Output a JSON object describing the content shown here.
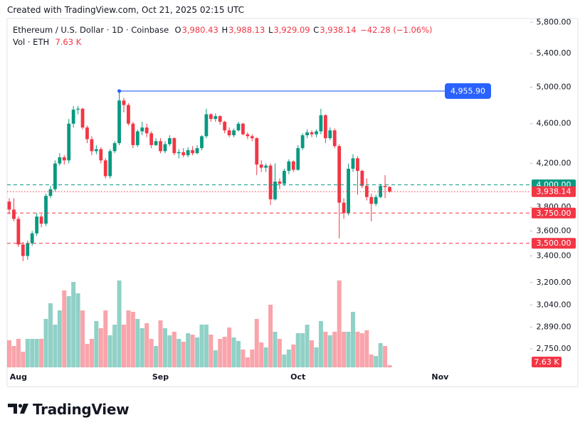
{
  "created": "Created with TradingView.com, Oct 21, 2025 02:15 UTC",
  "brand": "TradingView",
  "chart_data": {
    "type": "candlestick",
    "log_scale": true,
    "grid": false,
    "legend": {
      "title": "Ethereum / U.S. Dollar · 1D · Coinbase",
      "ohlc": [
        {
          "key": "O",
          "label": "3,980.43"
        },
        {
          "key": "H",
          "label": "3,988.13"
        },
        {
          "key": "L",
          "label": "3,929.09"
        },
        {
          "key": "C",
          "label": "3,938.14"
        }
      ],
      "change": "−42.28 (−1.06%)",
      "volume_title": "Vol · ETH"
    },
    "up_color": "#089981",
    "down_color": "#f23645",
    "categories": [
      null,
      null,
      "Aug",
      null,
      null,
      null,
      null,
      null,
      null,
      null,
      null,
      null,
      null,
      null,
      null,
      null,
      null,
      null,
      null,
      null,
      null,
      null,
      null,
      null,
      null,
      null,
      null,
      null,
      null,
      null,
      null,
      null,
      null,
      "Sep",
      null,
      null,
      null,
      null,
      null,
      null,
      null,
      null,
      null,
      null,
      null,
      null,
      null,
      null,
      null,
      null,
      null,
      null,
      null,
      null,
      null,
      null,
      null,
      null,
      null,
      null,
      null,
      null,
      null,
      "Oct",
      null,
      null,
      null,
      null,
      null,
      null,
      null,
      null,
      null,
      null,
      null,
      null,
      null,
      null,
      null,
      null,
      null,
      null,
      null,
      null,
      null,
      null,
      null,
      null,
      null,
      null,
      null,
      null,
      null,
      null,
      "Nov"
    ],
    "open": [
      3850,
      3780,
      3700,
      3490,
      3400,
      3500,
      3580,
      3720,
      3660,
      3900,
      3960,
      4200,
      4260,
      4230,
      4600,
      4750,
      4760,
      4560,
      4440,
      4320,
      4340,
      4230,
      4080,
      4320,
      4400,
      4850,
      4800,
      4600,
      4380,
      4520,
      4560,
      4500,
      4380,
      4420,
      4320,
      4390,
      4450,
      4300,
      4310,
      4280,
      4330,
      4300,
      4350,
      4470,
      4700,
      4650,
      4680,
      4620,
      4530,
      4480,
      4530,
      4600,
      4490,
      4470,
      4450,
      4190,
      4160,
      4180,
      3870,
      4030,
      4010,
      4130,
      4220,
      4140,
      4350,
      4480,
      4510,
      4490,
      4520,
      4690,
      4450,
      4530,
      4370,
      3840,
      3750,
      4150,
      4250,
      4130,
      3990,
      3890,
      3830,
      3890,
      3990,
      3980.43,
      null,
      null,
      null,
      null,
      null,
      null,
      null,
      null,
      null,
      null,
      null
    ],
    "high": [
      3880,
      3880,
      3720,
      3510,
      3520,
      3600,
      3750,
      3740,
      3920,
      3990,
      4230,
      4300,
      4280,
      4650,
      4790,
      4790,
      4770,
      4580,
      4470,
      4380,
      4360,
      4250,
      4340,
      4420,
      4955.9,
      4880,
      4820,
      4620,
      4540,
      4620,
      4600,
      4520,
      4450,
      4450,
      4420,
      4480,
      4460,
      4340,
      4350,
      4360,
      4370,
      4380,
      4480,
      4760,
      4710,
      4710,
      4690,
      4630,
      4560,
      4550,
      4620,
      4610,
      4510,
      4490,
      4460,
      4230,
      4200,
      4200,
      4200,
      4060,
      4150,
      4240,
      4230,
      4380,
      4500,
      4540,
      4530,
      4540,
      4760,
      4700,
      4560,
      4550,
      4390,
      3880,
      4200,
      4290,
      4270,
      4140,
      4060,
      3920,
      3910,
      4010,
      4090,
      3988.13,
      null,
      null,
      null,
      null,
      null,
      null,
      null,
      null,
      null,
      null,
      null
    ],
    "low": [
      3740,
      3680,
      3470,
      3360,
      3370,
      3480,
      3560,
      3630,
      3640,
      3880,
      3940,
      4180,
      4190,
      4200,
      4560,
      4700,
      4540,
      4400,
      4280,
      4290,
      4200,
      4060,
      4060,
      4300,
      4380,
      4720,
      4580,
      4350,
      4360,
      4480,
      4460,
      4350,
      4370,
      4300,
      4300,
      4370,
      4280,
      4250,
      4260,
      4260,
      4280,
      4290,
      4330,
      4450,
      4620,
      4620,
      4590,
      4500,
      4460,
      4460,
      4520,
      4480,
      4440,
      4420,
      4090,
      4120,
      4120,
      3820,
      3860,
      3960,
      3990,
      4100,
      4120,
      4130,
      4330,
      4450,
      4460,
      4460,
      4490,
      4400,
      4430,
      4350,
      3540,
      3700,
      3730,
      4120,
      3910,
      3970,
      3860,
      3680,
      3810,
      3880,
      3880,
      3929.09,
      null,
      null,
      null,
      null,
      null,
      null,
      null,
      null,
      null,
      null,
      null
    ],
    "close": [
      3780,
      3700,
      3490,
      3400,
      3500,
      3580,
      3720,
      3660,
      3900,
      3960,
      4200,
      4260,
      4230,
      4600,
      4750,
      4760,
      4560,
      4440,
      4320,
      4340,
      4230,
      4080,
      4320,
      4400,
      4850,
      4800,
      4600,
      4380,
      4520,
      4560,
      4500,
      4380,
      4420,
      4320,
      4390,
      4450,
      4300,
      4310,
      4280,
      4330,
      4300,
      4350,
      4470,
      4700,
      4650,
      4680,
      4620,
      4530,
      4480,
      4530,
      4600,
      4490,
      4470,
      4450,
      4190,
      4160,
      4180,
      3870,
      4030,
      4010,
      4130,
      4220,
      4140,
      4350,
      4480,
      4510,
      4490,
      4520,
      4690,
      4450,
      4530,
      4370,
      3840,
      3750,
      4150,
      4250,
      4130,
      3990,
      3890,
      3830,
      3890,
      3990,
      3980.43,
      3938.14,
      null,
      null,
      null,
      null,
      null,
      null,
      null,
      null,
      null,
      null,
      null
    ],
    "volume": {
      "values": [
        95000,
        75000,
        100000,
        55000,
        100000,
        100000,
        100000,
        100000,
        170000,
        225000,
        150000,
        200000,
        270000,
        250000,
        300000,
        260000,
        200000,
        82500,
        100000,
        162500,
        137500,
        200000,
        112500,
        150000,
        305000,
        150000,
        200000,
        195000,
        170000,
        137500,
        155000,
        100000,
        75000,
        165000,
        137500,
        112500,
        125000,
        100000,
        90000,
        120000,
        115000,
        105000,
        150000,
        150000,
        115000,
        60000,
        100000,
        107500,
        140000,
        105000,
        92500,
        62500,
        35000,
        62500,
        170000,
        87500,
        70000,
        220000,
        125000,
        100000,
        45000,
        62500,
        80000,
        120000,
        120000,
        150000,
        95000,
        70000,
        162500,
        125000,
        112500,
        125000,
        305000,
        125000,
        125000,
        195000,
        125000,
        120000,
        130000,
        45000,
        40000,
        85000,
        75000,
        7630,
        null,
        null,
        null,
        null,
        null,
        null,
        null,
        null,
        null,
        null,
        null
      ],
      "value_labels": [
        null,
        null,
        null,
        null,
        null,
        null,
        null,
        null,
        null,
        null,
        null,
        null,
        null,
        null,
        null,
        null,
        null,
        null,
        null,
        null,
        null,
        null,
        null,
        null,
        null,
        null,
        null,
        null,
        null,
        null,
        null,
        null,
        null,
        null,
        null,
        null,
        null,
        null,
        null,
        null,
        null,
        null,
        null,
        null,
        null,
        null,
        null,
        null,
        null,
        null,
        null,
        null,
        null,
        null,
        null,
        null,
        null,
        null,
        null,
        null,
        null,
        null,
        null,
        null,
        null,
        null,
        null,
        null,
        null,
        null,
        null,
        null,
        null,
        null,
        null,
        null,
        null,
        null,
        null,
        null,
        null,
        null,
        null,
        "7.63 K",
        null,
        null,
        null,
        null,
        null,
        null,
        null,
        null,
        null,
        null,
        null
      ]
    },
    "ylim": [
      2640,
      5850
    ],
    "yticks": [
      {
        "value": 5800,
        "label": "5,800.00"
      },
      {
        "value": 5400,
        "label": "5,400.00"
      },
      {
        "value": 5000,
        "label": "5,000.00"
      },
      {
        "value": 4600,
        "label": "4,600.00"
      },
      {
        "value": 4200,
        "label": "4,200.00"
      },
      {
        "value": 3800,
        "label": "3,800.00"
      },
      {
        "value": 3600,
        "label": "3,600.00"
      },
      {
        "value": 3400,
        "label": "3,400.00"
      },
      {
        "value": 3200,
        "label": "3,200.00"
      },
      {
        "value": 3040,
        "label": "3,040.00"
      },
      {
        "value": 2890,
        "label": "2,890.00"
      },
      {
        "value": 2750,
        "label": "2,750.00"
      }
    ],
    "levels": [
      {
        "value": 4000,
        "label": "4,000.00",
        "color": "#089981",
        "style": "dashed"
      },
      {
        "value": 3938.14,
        "label": "3,938.14",
        "color": "#f23645",
        "style": "dotted"
      },
      {
        "value": 3750,
        "label": "3,750.00",
        "color": "#f23645",
        "style": "dashed"
      },
      {
        "value": 3500,
        "label": "3,500.00",
        "color": "#f23645",
        "style": "dashed"
      }
    ],
    "trend_line": {
      "value": 4955.9,
      "label": "4,955.90",
      "color": "#2962ff"
    }
  }
}
